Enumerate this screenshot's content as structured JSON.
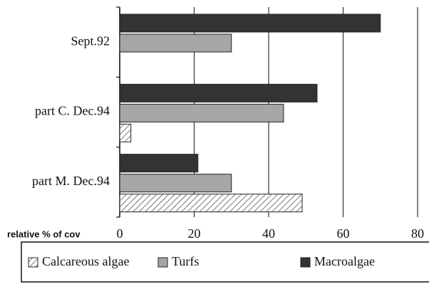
{
  "chart_data": {
    "type": "barh",
    "categories": [
      "Sept.92",
      "part C. Dec.94",
      "part M. Dec.94"
    ],
    "series": [
      {
        "name": "Calcareous algae",
        "color": "#555555",
        "hatch": true,
        "values": [
          0,
          3,
          49
        ]
      },
      {
        "name": "Turfs",
        "color": "#a6a6a6",
        "values": [
          30,
          44,
          30
        ]
      },
      {
        "name": "Macroalgae",
        "color": "#333333",
        "values": [
          70,
          53,
          21
        ]
      }
    ],
    "x_label": "relative % of cov",
    "xlim": [
      0,
      80
    ],
    "xticks": [
      0,
      20,
      40,
      60,
      80
    ],
    "grid": true
  }
}
